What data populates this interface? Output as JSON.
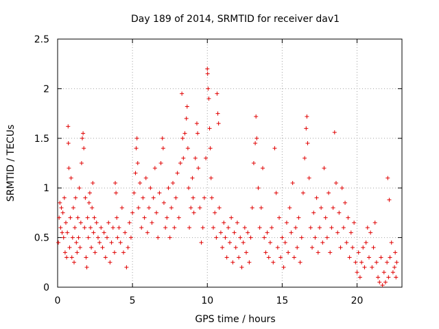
{
  "chart_data": {
    "type": "scatter",
    "title": "Day 189 of 2014, SRMTID for receiver dav1",
    "xlabel": "GPS time / hours",
    "ylabel": "SRMTID / TECUs",
    "xlim": [
      0,
      23
    ],
    "ylim": [
      0,
      2.5
    ],
    "xticks": [
      0,
      5,
      10,
      15,
      20
    ],
    "yticks": [
      0,
      0.5,
      1,
      1.5,
      2,
      2.5
    ],
    "xtick_labels": [
      "0",
      "5",
      "10",
      "15",
      "20"
    ],
    "ytick_labels": [
      "0",
      "0.5",
      "1",
      "1.5",
      "2",
      "2.5"
    ],
    "grid": true,
    "marker": "+",
    "color": "#e00000",
    "series": [
      {
        "name": "SRMTID",
        "points": [
          [
            0.05,
            0.45
          ],
          [
            0.1,
            0.7
          ],
          [
            0.15,
            0.85
          ],
          [
            0.2,
            0.6
          ],
          [
            0.25,
            0.8
          ],
          [
            0.3,
            0.55
          ],
          [
            0.35,
            0.75
          ],
          [
            0.4,
            0.5
          ],
          [
            0.45,
            0.9
          ],
          [
            0.5,
            0.35
          ],
          [
            0.55,
            0.65
          ],
          [
            0.6,
            0.3
          ],
          [
            0.65,
            0.55
          ],
          [
            0.7,
            1.62
          ],
          [
            0.72,
            1.45
          ],
          [
            0.75,
            1.2
          ],
          [
            0.8,
            0.4
          ],
          [
            0.85,
            0.7
          ],
          [
            0.9,
            1.1
          ],
          [
            0.95,
            0.3
          ],
          [
            1.0,
            0.5
          ],
          [
            1.05,
            0.8
          ],
          [
            1.1,
            0.25
          ],
          [
            1.15,
            0.6
          ],
          [
            1.2,
            0.9
          ],
          [
            1.25,
            0.45
          ],
          [
            1.3,
            0.35
          ],
          [
            1.35,
            0.7
          ],
          [
            1.4,
            0.5
          ],
          [
            1.45,
            1.0
          ],
          [
            1.5,
            0.4
          ],
          [
            1.55,
            0.65
          ],
          [
            1.6,
            1.25
          ],
          [
            1.65,
            1.5
          ],
          [
            1.7,
            1.55
          ],
          [
            1.75,
            1.4
          ],
          [
            1.8,
            0.6
          ],
          [
            1.85,
            0.9
          ],
          [
            1.9,
            0.3
          ],
          [
            1.95,
            0.2
          ],
          [
            2.0,
            0.7
          ],
          [
            2.05,
            0.5
          ],
          [
            2.1,
            0.85
          ],
          [
            2.15,
            0.95
          ],
          [
            2.2,
            0.6
          ],
          [
            2.25,
            0.4
          ],
          [
            2.3,
            0.8
          ],
          [
            2.35,
            1.05
          ],
          [
            2.4,
            0.55
          ],
          [
            2.45,
            0.7
          ],
          [
            2.5,
            0.35
          ],
          [
            2.6,
            0.65
          ],
          [
            2.7,
            0.5
          ],
          [
            2.8,
            0.45
          ],
          [
            2.9,
            0.6
          ],
          [
            3.0,
            0.4
          ],
          [
            3.1,
            0.55
          ],
          [
            3.2,
            0.3
          ],
          [
            3.3,
            0.5
          ],
          [
            3.4,
            0.65
          ],
          [
            3.5,
            0.25
          ],
          [
            3.6,
            0.45
          ],
          [
            3.7,
            0.6
          ],
          [
            3.8,
            0.35
          ],
          [
            3.85,
            1.05
          ],
          [
            3.9,
            0.95
          ],
          [
            3.95,
            0.7
          ],
          [
            4.0,
            0.5
          ],
          [
            4.1,
            0.6
          ],
          [
            4.2,
            0.45
          ],
          [
            4.3,
            0.8
          ],
          [
            4.4,
            0.35
          ],
          [
            4.5,
            0.55
          ],
          [
            4.6,
            0.2
          ],
          [
            4.7,
            0.4
          ],
          [
            4.8,
            0.65
          ],
          [
            4.9,
            0.5
          ],
          [
            5.0,
            0.75
          ],
          [
            5.1,
            0.95
          ],
          [
            5.2,
            1.15
          ],
          [
            5.25,
            1.4
          ],
          [
            5.3,
            1.5
          ],
          [
            5.35,
            1.25
          ],
          [
            5.4,
            0.8
          ],
          [
            5.5,
            1.05
          ],
          [
            5.6,
            0.6
          ],
          [
            5.7,
            0.9
          ],
          [
            5.8,
            0.7
          ],
          [
            5.9,
            1.1
          ],
          [
            6.0,
            0.55
          ],
          [
            6.1,
            0.8
          ],
          [
            6.2,
            1.0
          ],
          [
            6.3,
            0.65
          ],
          [
            6.4,
            0.9
          ],
          [
            6.5,
            1.2
          ],
          [
            6.6,
            0.75
          ],
          [
            6.7,
            0.5
          ],
          [
            6.8,
            0.95
          ],
          [
            6.9,
            1.25
          ],
          [
            7.0,
            1.5
          ],
          [
            7.05,
            1.4
          ],
          [
            7.1,
            0.85
          ],
          [
            7.2,
            0.6
          ],
          [
            7.3,
            0.7
          ],
          [
            7.4,
            1.0
          ],
          [
            7.5,
            0.5
          ],
          [
            7.6,
            0.8
          ],
          [
            7.7,
            1.05
          ],
          [
            7.8,
            0.6
          ],
          [
            7.9,
            0.9
          ],
          [
            8.0,
            1.15
          ],
          [
            8.1,
            0.7
          ],
          [
            8.2,
            1.25
          ],
          [
            8.3,
            1.95
          ],
          [
            8.35,
            1.5
          ],
          [
            8.4,
            1.3
          ],
          [
            8.5,
            1.55
          ],
          [
            8.6,
            1.7
          ],
          [
            8.65,
            1.82
          ],
          [
            8.7,
            1.4
          ],
          [
            8.75,
            1.0
          ],
          [
            8.8,
            0.6
          ],
          [
            8.9,
            0.8
          ],
          [
            9.0,
            1.1
          ],
          [
            9.05,
            0.9
          ],
          [
            9.1,
            0.75
          ],
          [
            9.2,
            1.3
          ],
          [
            9.3,
            1.65
          ],
          [
            9.35,
            1.55
          ],
          [
            9.4,
            1.2
          ],
          [
            9.5,
            0.8
          ],
          [
            9.6,
            0.45
          ],
          [
            9.7,
            0.6
          ],
          [
            9.8,
            0.9
          ],
          [
            9.9,
            1.3
          ],
          [
            10.0,
            2.2
          ],
          [
            10.02,
            2.15
          ],
          [
            10.05,
            2.0
          ],
          [
            10.1,
            1.9
          ],
          [
            10.15,
            1.6
          ],
          [
            10.2,
            1.4
          ],
          [
            10.25,
            1.1
          ],
          [
            10.3,
            0.9
          ],
          [
            10.4,
            0.6
          ],
          [
            10.5,
            0.75
          ],
          [
            10.6,
            0.5
          ],
          [
            10.65,
            1.95
          ],
          [
            10.7,
            1.75
          ],
          [
            10.75,
            1.65
          ],
          [
            10.8,
            0.8
          ],
          [
            10.9,
            0.55
          ],
          [
            11.0,
            0.4
          ],
          [
            11.1,
            0.65
          ],
          [
            11.2,
            0.5
          ],
          [
            11.3,
            0.3
          ],
          [
            11.4,
            0.6
          ],
          [
            11.5,
            0.45
          ],
          [
            11.6,
            0.7
          ],
          [
            11.7,
            0.25
          ],
          [
            11.8,
            0.55
          ],
          [
            11.9,
            0.4
          ],
          [
            12.0,
            0.65
          ],
          [
            12.1,
            0.3
          ],
          [
            12.2,
            0.5
          ],
          [
            12.3,
            0.2
          ],
          [
            12.4,
            0.45
          ],
          [
            12.5,
            0.6
          ],
          [
            12.6,
            0.35
          ],
          [
            12.7,
            0.55
          ],
          [
            12.8,
            0.25
          ],
          [
            12.9,
            0.5
          ],
          [
            13.0,
            0.8
          ],
          [
            13.1,
            1.25
          ],
          [
            13.2,
            1.45
          ],
          [
            13.25,
            1.72
          ],
          [
            13.3,
            1.5
          ],
          [
            13.4,
            1.0
          ],
          [
            13.5,
            0.6
          ],
          [
            13.6,
            0.8
          ],
          [
            13.7,
            1.2
          ],
          [
            13.8,
            0.5
          ],
          [
            13.9,
            0.35
          ],
          [
            14.0,
            0.55
          ],
          [
            14.1,
            0.3
          ],
          [
            14.2,
            0.45
          ],
          [
            14.3,
            0.6
          ],
          [
            14.4,
            0.25
          ],
          [
            14.5,
            1.4
          ],
          [
            14.6,
            0.95
          ],
          [
            14.7,
            0.4
          ],
          [
            14.8,
            0.7
          ],
          [
            14.9,
            0.3
          ],
          [
            15.0,
            0.5
          ],
          [
            15.1,
            0.2
          ],
          [
            15.2,
            0.45
          ],
          [
            15.3,
            0.65
          ],
          [
            15.4,
            0.35
          ],
          [
            15.5,
            0.8
          ],
          [
            15.6,
            0.55
          ],
          [
            15.7,
            1.05
          ],
          [
            15.8,
            0.3
          ],
          [
            15.9,
            0.6
          ],
          [
            16.0,
            0.4
          ],
          [
            16.1,
            0.7
          ],
          [
            16.2,
            0.25
          ],
          [
            16.3,
            0.5
          ],
          [
            16.4,
            0.95
          ],
          [
            16.5,
            1.3
          ],
          [
            16.6,
            1.6
          ],
          [
            16.65,
            1.72
          ],
          [
            16.7,
            1.45
          ],
          [
            16.8,
            1.1
          ],
          [
            16.9,
            0.6
          ],
          [
            17.0,
            0.4
          ],
          [
            17.1,
            0.75
          ],
          [
            17.2,
            0.5
          ],
          [
            17.3,
            0.9
          ],
          [
            17.4,
            0.35
          ],
          [
            17.5,
            0.6
          ],
          [
            17.6,
            0.8
          ],
          [
            17.7,
            0.45
          ],
          [
            17.8,
            1.2
          ],
          [
            17.9,
            0.7
          ],
          [
            18.0,
            0.5
          ],
          [
            18.1,
            0.95
          ],
          [
            18.2,
            0.35
          ],
          [
            18.3,
            0.6
          ],
          [
            18.4,
            0.8
          ],
          [
            18.5,
            1.56
          ],
          [
            18.6,
            1.05
          ],
          [
            18.7,
            0.55
          ],
          [
            18.8,
            0.75
          ],
          [
            18.9,
            0.4
          ],
          [
            19.0,
            1.0
          ],
          [
            19.1,
            0.6
          ],
          [
            19.2,
            0.85
          ],
          [
            19.3,
            0.45
          ],
          [
            19.4,
            0.7
          ],
          [
            19.5,
            0.3
          ],
          [
            19.6,
            0.55
          ],
          [
            19.7,
            0.4
          ],
          [
            19.8,
            0.65
          ],
          [
            19.9,
            0.25
          ],
          [
            20.0,
            0.15
          ],
          [
            20.1,
            0.35
          ],
          [
            20.2,
            0.1
          ],
          [
            20.3,
            0.25
          ],
          [
            20.4,
            0.4
          ],
          [
            20.5,
            0.2
          ],
          [
            20.6,
            0.45
          ],
          [
            20.7,
            0.6
          ],
          [
            20.8,
            0.3
          ],
          [
            20.9,
            0.55
          ],
          [
            21.0,
            0.2
          ],
          [
            21.1,
            0.4
          ],
          [
            21.2,
            0.65
          ],
          [
            21.3,
            0.25
          ],
          [
            21.4,
            0.1
          ],
          [
            21.5,
            0.05
          ],
          [
            21.6,
            0.3
          ],
          [
            21.7,
            0.02
          ],
          [
            21.8,
            0.15
          ],
          [
            21.9,
            0.05
          ],
          [
            22.0,
            0.25
          ],
          [
            22.05,
            1.1
          ],
          [
            22.1,
            0.1
          ],
          [
            22.15,
            0.88
          ],
          [
            22.2,
            0.3
          ],
          [
            22.3,
            0.45
          ],
          [
            22.4,
            0.15
          ],
          [
            22.5,
            0.2
          ],
          [
            22.55,
            0.35
          ],
          [
            22.6,
            0.1
          ],
          [
            22.65,
            0.25
          ]
        ]
      }
    ]
  }
}
